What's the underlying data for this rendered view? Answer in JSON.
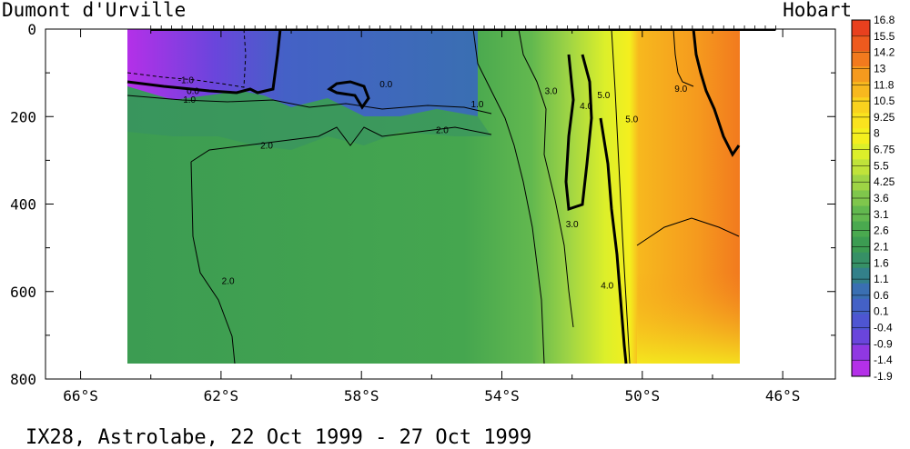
{
  "chart_data": {
    "type": "heatmap",
    "title": "IX28, Astrolabe, 22 Oct 1999 - 27 Oct 1999",
    "left_label": "Dumont d'Urville",
    "right_label": "Hobart",
    "x_unit": "latitude (°S)",
    "y_unit": "depth (m)",
    "xlim": [
      -67,
      -44.5
    ],
    "ylim": [
      800,
      0
    ],
    "x_ticks": [
      -66,
      -62,
      -58,
      -54,
      -50,
      -46
    ],
    "x_tick_labels": [
      "66°S",
      "62°S",
      "58°S",
      "54°S",
      "50°S",
      "46°S"
    ],
    "y_ticks": [
      0,
      200,
      400,
      600,
      800
    ],
    "y_tick_labels": [
      "0",
      "200",
      "400",
      "600",
      "800"
    ],
    "data_extent": {
      "lat_start": -64.0,
      "lat_end": -46.2,
      "depth_max": 770
    },
    "colorbar": {
      "levels": [
        "16.8",
        "15.5",
        "14.2",
        "13",
        "11.8",
        "10.5",
        "9.25",
        "8",
        "6.75",
        "5.5",
        "4.25",
        "3.6",
        "3.1",
        "2.6",
        "2.1",
        "1.6",
        "1.1",
        "0.6",
        "0.1",
        "-0.4",
        "-0.9",
        "-1.4",
        "-1.9"
      ],
      "colors_top_to_bottom": [
        "#e8401e",
        "#ee5a1e",
        "#f27a1e",
        "#f59a1e",
        "#f7b81e",
        "#f9d21e",
        "#fae31e",
        "#f4ef1e",
        "#dcef2a",
        "#c0e33a",
        "#9ed445",
        "#7fc64c",
        "#62b84f",
        "#4aa94f",
        "#3c9c52",
        "#369066",
        "#33808a",
        "#3a6fb2",
        "#4461c6",
        "#4e55d2",
        "#6a45dc",
        "#9038e2",
        "#b430e8"
      ]
    },
    "contours": [
      {
        "label": "-1.0",
        "lat": -63.0,
        "depth": 115
      },
      {
        "label": "0.0",
        "lat": -62.8,
        "depth": 140
      },
      {
        "label": "0.0",
        "lat": -57.3,
        "depth": 125
      },
      {
        "label": "1.0",
        "lat": -62.9,
        "depth": 160
      },
      {
        "label": "1.0",
        "lat": -54.7,
        "depth": 170
      },
      {
        "label": "2.0",
        "lat": -60.7,
        "depth": 265
      },
      {
        "label": "2.0",
        "lat": -55.7,
        "depth": 230
      },
      {
        "label": "2.0",
        "lat": -61.8,
        "depth": 575
      },
      {
        "label": "3.0",
        "lat": -52.6,
        "depth": 140
      },
      {
        "label": "3.0",
        "lat": -52.0,
        "depth": 445
      },
      {
        "label": "4.0",
        "lat": -51.6,
        "depth": 175
      },
      {
        "label": "4.0",
        "lat": -51.0,
        "depth": 585
      },
      {
        "label": "5.0",
        "lat": -51.1,
        "depth": 150
      },
      {
        "label": "5.0",
        "lat": -50.3,
        "depth": 205
      },
      {
        "label": "9.0",
        "lat": -48.9,
        "depth": 135
      }
    ]
  }
}
